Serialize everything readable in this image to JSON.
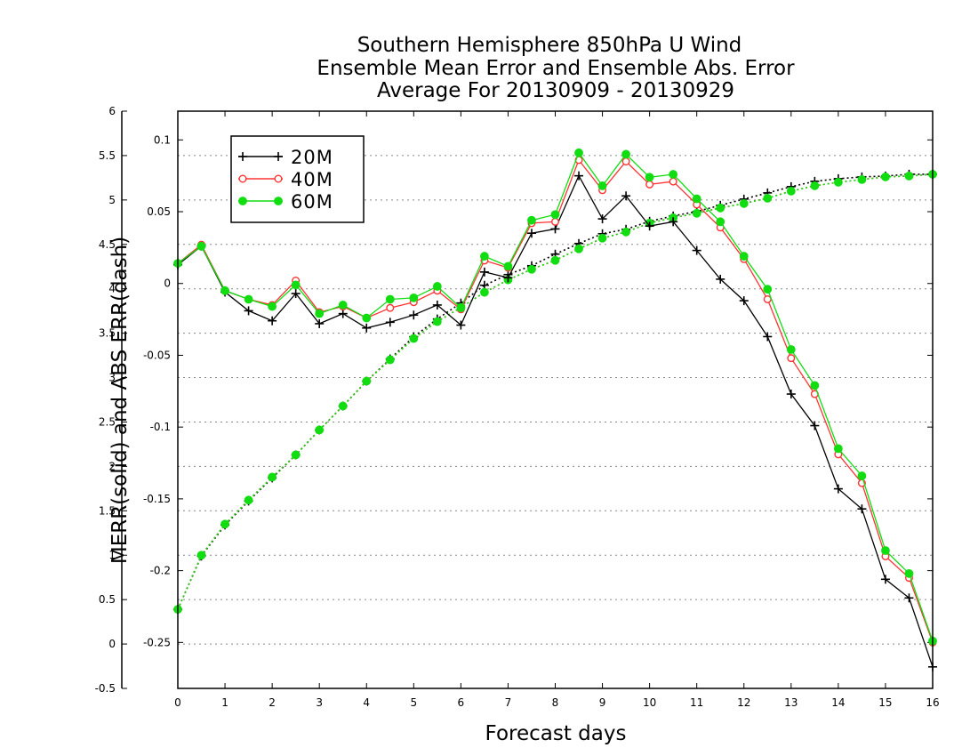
{
  "chart_data": {
    "type": "line",
    "title": [
      "Southern Hemisphere 850hPa U Wind",
      "Ensemble Mean Error and Ensemble Abs. Error",
      "Average For 20130909 - 20130929"
    ],
    "xlabel": "Forecast days",
    "ylabel": "MERR(solid) and ABS ERR(dash)",
    "x_ticks": [
      "0",
      "1",
      "2",
      "3",
      "4",
      "5",
      "6",
      "7",
      "8",
      "9",
      "10",
      "11",
      "12",
      "13",
      "14",
      "15",
      "16"
    ],
    "xlim": [
      0,
      16
    ],
    "left_axis": {
      "ticks": [
        "-0.5",
        "0",
        "0.5",
        "1",
        "1.5",
        "2",
        "2.5",
        "3",
        "3.5",
        "4",
        "4.5",
        "5",
        "5.5",
        "6"
      ],
      "tick_values": [
        -0.5,
        0,
        0.5,
        1,
        1.5,
        2,
        2.5,
        3,
        3.5,
        4,
        4.5,
        5,
        5.5,
        6
      ],
      "ylim": [
        -0.5,
        6
      ]
    },
    "inner_axis": {
      "ticks": [
        "-0.25",
        "-0.2",
        "-0.15",
        "-0.1",
        "-0.05",
        "0",
        "0.05",
        "0.1"
      ],
      "tick_values": [
        -0.25,
        -0.2,
        -0.15,
        -0.1,
        -0.05,
        0,
        0.05,
        0.1
      ],
      "ylim": [
        -0.282,
        0.12
      ]
    },
    "grid": true,
    "legend": {
      "position": "top-left",
      "entries": [
        "20M",
        "40M",
        "60M"
      ]
    },
    "x": [
      0,
      0.5,
      1,
      1.5,
      2,
      2.5,
      3,
      3.5,
      4,
      4.5,
      5,
      5.5,
      6,
      6.5,
      7,
      7.5,
      8,
      8.5,
      9,
      9.5,
      10,
      10.5,
      11,
      11.5,
      12,
      12.5,
      13,
      13.5,
      14,
      14.5,
      15,
      15.5,
      16
    ],
    "series": [
      {
        "name": "20M",
        "color": "#000000",
        "marker": "plus",
        "merr": [
          0.013,
          0.026,
          -0.006,
          -0.019,
          -0.026,
          -0.007,
          -0.028,
          -0.021,
          -0.031,
          -0.027,
          -0.022,
          -0.015,
          -0.029,
          0.008,
          0.004,
          0.035,
          0.038,
          0.075,
          0.045,
          0.061,
          0.04,
          0.043,
          0.023,
          0.003,
          -0.012,
          -0.037,
          -0.077,
          -0.099,
          -0.143,
          -0.157,
          -0.206,
          -0.219,
          -0.267
        ],
        "abs_err": [
          0.39,
          0.99,
          1.34,
          1.61,
          1.87,
          2.13,
          2.41,
          2.68,
          2.96,
          3.21,
          3.46,
          3.66,
          3.84,
          4.04,
          4.16,
          4.26,
          4.39,
          4.51,
          4.62,
          4.67,
          4.76,
          4.82,
          4.87,
          4.94,
          5.01,
          5.08,
          5.15,
          5.21,
          5.24,
          5.26,
          5.27,
          5.29,
          5.29
        ]
      },
      {
        "name": "40M",
        "color": "#ff3333",
        "marker": "open-circle",
        "merr": [
          0.014,
          0.027,
          -0.005,
          -0.011,
          -0.015,
          0.002,
          -0.02,
          -0.016,
          -0.024,
          -0.017,
          -0.013,
          -0.005,
          -0.018,
          0.016,
          0.011,
          0.042,
          0.043,
          0.086,
          0.065,
          0.085,
          0.069,
          0.071,
          0.055,
          0.039,
          0.017,
          -0.011,
          -0.052,
          -0.077,
          -0.119,
          -0.139,
          -0.19,
          -0.205,
          -0.25
        ],
        "abs_err": [
          0.39,
          1.0,
          1.35,
          1.62,
          1.88,
          2.13,
          2.41,
          2.68,
          2.96,
          3.2,
          3.44,
          3.63,
          3.79,
          3.96,
          4.1,
          4.22,
          4.32,
          4.45,
          4.57,
          4.64,
          4.74,
          4.8,
          4.85,
          4.91,
          4.96,
          5.02,
          5.1,
          5.16,
          5.2,
          5.23,
          5.26,
          5.27,
          5.29
        ]
      },
      {
        "name": "60M",
        "color": "#11dd11",
        "marker": "filled-circle",
        "merr": [
          0.014,
          0.026,
          -0.005,
          -0.011,
          -0.016,
          -0.001,
          -0.021,
          -0.015,
          -0.024,
          -0.011,
          -0.01,
          -0.002,
          -0.017,
          0.019,
          0.012,
          0.044,
          0.048,
          0.091,
          0.068,
          0.09,
          0.074,
          0.076,
          0.059,
          0.043,
          0.019,
          -0.004,
          -0.046,
          -0.071,
          -0.115,
          -0.134,
          -0.186,
          -0.202,
          -0.249
        ],
        "abs_err": [
          0.39,
          1.0,
          1.35,
          1.62,
          1.88,
          2.13,
          2.41,
          2.68,
          2.96,
          3.2,
          3.44,
          3.63,
          3.79,
          3.96,
          4.1,
          4.22,
          4.32,
          4.45,
          4.57,
          4.64,
          4.74,
          4.8,
          4.85,
          4.91,
          4.96,
          5.02,
          5.1,
          5.16,
          5.2,
          5.23,
          5.26,
          5.27,
          5.29
        ]
      }
    ]
  }
}
